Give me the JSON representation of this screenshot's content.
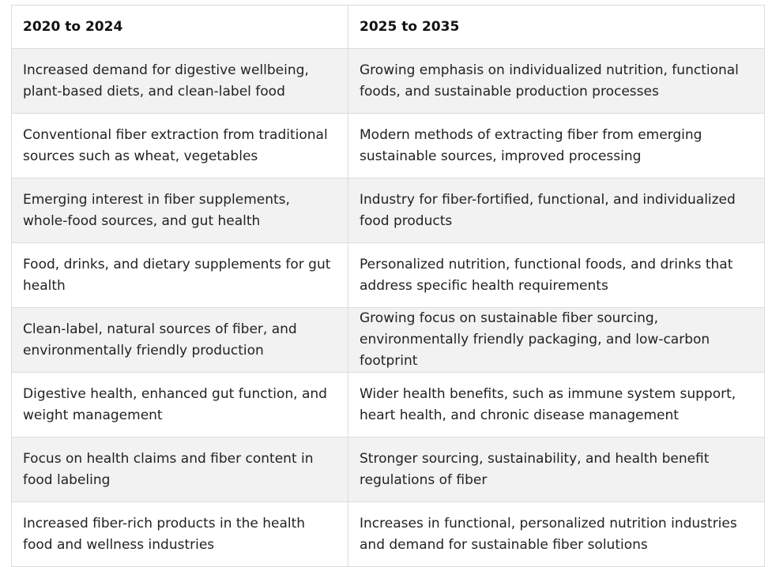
{
  "table": {
    "headers": [
      "2020 to 2024",
      "2025 to 2035"
    ],
    "rows": [
      [
        "Increased demand for digestive wellbeing, plant-based diets, and clean-label food",
        "Growing emphasis on individualized nutrition, functional foods, and sustainable production processes"
      ],
      [
        "Conventional fiber extraction from traditional sources such as wheat, vegetables",
        "Modern methods of extracting fiber from emerging sustainable sources, improved processing"
      ],
      [
        "Emerging interest in fiber supplements, whole-food sources, and gut health",
        "Industry for fiber-fortified, functional, and individualized food products"
      ],
      [
        "Food, drinks, and dietary supplements for gut health",
        "Personalized nutrition, functional foods, and drinks that address specific health requirements"
      ],
      [
        "Clean-label, natural sources of fiber, and environmentally friendly production",
        "Growing focus on sustainable fiber sourcing, environmentally friendly packaging, and low-carbon footprint"
      ],
      [
        "Digestive health, enhanced gut function, and weight management",
        "Wider health benefits, such as immune system support, heart health, and chronic disease management"
      ],
      [
        "Focus on health claims and fiber content in food labeling",
        "Stronger sourcing, sustainability, and health benefit regulations of fiber"
      ],
      [
        "Increased fiber-rich products in the health food and wellness industries",
        "Increases in functional, personalized nutrition industries and demand for sustainable fiber solutions"
      ]
    ]
  }
}
